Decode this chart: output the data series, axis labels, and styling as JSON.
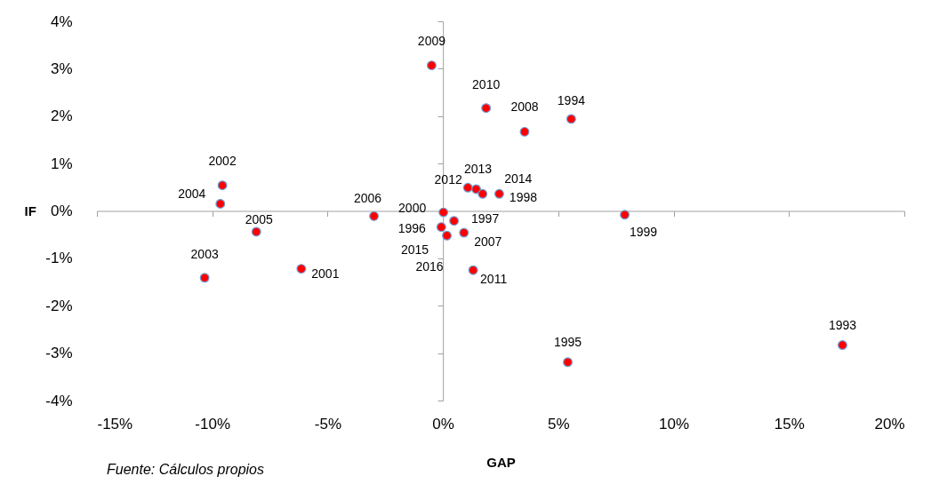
{
  "chart_data": {
    "type": "scatter",
    "xlabel": "GAP",
    "ylabel": "IF",
    "x": [
      17.32,
      5.56,
      5.41,
      -0.07,
      0.48,
      2.44,
      7.88,
      0.02,
      -6.14,
      -9.56,
      -10.33,
      -9.65,
      -8.09,
      -2.99,
      0.91,
      3.54,
      -0.49,
      1.87,
      1.31,
      1.08,
      1.44,
      1.72,
      0.17,
      null
    ],
    "series": [
      {
        "color": "#ff0000",
        "values": [
          -2.83,
          1.94,
          -3.19,
          -0.34,
          -0.21,
          0.36,
          -0.08,
          -0.03,
          -1.22,
          0.54,
          -1.41,
          0.15,
          -0.44,
          -0.11,
          -0.46,
          1.67,
          3.07,
          2.17,
          -1.25,
          0.49,
          0.46,
          0.36,
          -0.52,
          null
        ]
      }
    ],
    "xlim": [
      -15,
      20
    ],
    "xticks": [
      {
        "value": -15,
        "label": "-15%"
      },
      {
        "value": -10,
        "label": "-10%"
      },
      {
        "value": -5,
        "label": "-5%"
      },
      {
        "value": 0,
        "label": "0%"
      },
      {
        "value": 5,
        "label": "5%"
      },
      {
        "value": 10,
        "label": "10%"
      },
      {
        "value": 15,
        "label": "15%"
      },
      {
        "value": 20,
        "label": "20%"
      }
    ],
    "ylim": [
      -4,
      4
    ],
    "yticks": [
      {
        "value": -4,
        "label": "-4%"
      },
      {
        "value": -3,
        "label": "-3%"
      },
      {
        "value": -2,
        "label": "-2%"
      },
      {
        "value": -1,
        "label": "-1%"
      },
      {
        "value": 0,
        "label": "0%"
      },
      {
        "value": 1,
        "label": "1%"
      },
      {
        "value": 2,
        "label": "2%"
      },
      {
        "value": 3,
        "label": "3%"
      },
      {
        "value": 4,
        "label": "4%"
      }
    ],
    "marker": "circle",
    "annotations": [
      {
        "text": "1993",
        "x": 17.32,
        "y": -2.83
      },
      {
        "text": "1994",
        "x": 5.56,
        "y": 1.94
      },
      {
        "text": "1995",
        "x": 5.41,
        "y": -3.19
      },
      {
        "text": "1996",
        "x": -0.07,
        "y": -0.34
      },
      {
        "text": "1997",
        "x": 0.48,
        "y": -0.21
      },
      {
        "text": "1998",
        "x": 2.44,
        "y": 0.36
      },
      {
        "text": "1999",
        "x": 7.88,
        "y": -0.08
      },
      {
        "text": "2000",
        "x": 0.02,
        "y": -0.03
      },
      {
        "text": "2001",
        "x": -6.14,
        "y": -1.22
      },
      {
        "text": "2002",
        "x": -9.56,
        "y": 0.54
      },
      {
        "text": "2003",
        "x": -10.33,
        "y": -1.41
      },
      {
        "text": "2004",
        "x": -9.65,
        "y": 0.15
      },
      {
        "text": "2005",
        "x": -8.09,
        "y": -0.44
      },
      {
        "text": "2006",
        "x": -2.99,
        "y": -0.11
      },
      {
        "text": "2007",
        "x": 0.91,
        "y": -0.46
      },
      {
        "text": "2008",
        "x": 3.54,
        "y": 1.67
      },
      {
        "text": "2009",
        "x": -0.49,
        "y": 3.07
      },
      {
        "text": "2010",
        "x": 1.87,
        "y": 2.17
      },
      {
        "text": "2011",
        "x": 1.31,
        "y": -1.25
      },
      {
        "text": "2012",
        "x": 1.08,
        "y": 0.49
      },
      {
        "text": "2013",
        "x": 1.44,
        "y": 0.46
      },
      {
        "text": "2014",
        "x": 1.72,
        "y": 0.36
      },
      {
        "text": "2015",
        "x": 0.17,
        "y": -0.52
      },
      {
        "text": "2016",
        "x": 0.15,
        "y": -0.5
      },
      "Fuente:  Cálculos propios"
    ]
  }
}
